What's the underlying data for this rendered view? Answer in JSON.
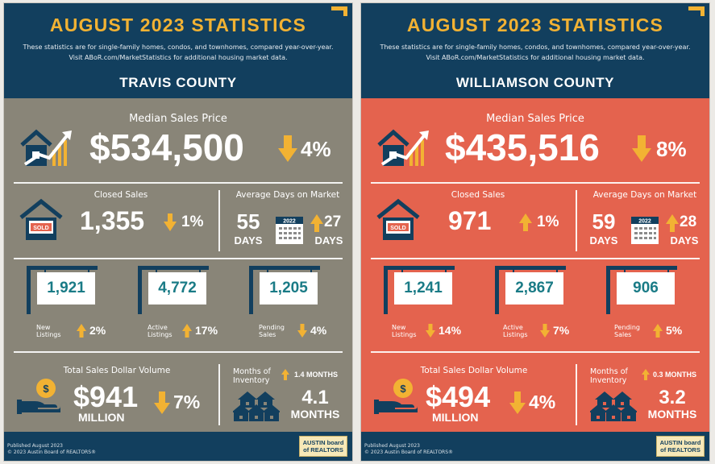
{
  "colors": {
    "navy": "#123f5e",
    "gold": "#f2b233",
    "travis_body": "#898578",
    "williamson_body": "#e4634e",
    "teal": "#1a7b86"
  },
  "panels": [
    {
      "title": "AUGUST 2023 STATISTICS",
      "subtitle_line1": "These statistics are for single-family homes, condos, and townhomes, compared year-over-year.",
      "subtitle_line2": "Visit ABoR.com/MarketStatistics for additional housing market data.",
      "county": "TRAVIS COUNTY",
      "median_label": "Median Sales Price",
      "median_value": "$534,500",
      "median_change": "4%",
      "median_direction": "down",
      "closed_label": "Closed Sales",
      "closed_value": "1,355",
      "closed_change": "1%",
      "closed_direction": "down",
      "dom_label": "Average Days on Market",
      "dom_value": "55",
      "dom_unit": "DAYS",
      "dom_year": "2022",
      "dom_change": "27",
      "dom_change_unit": "DAYS",
      "dom_direction": "up",
      "new_listings_value": "1,921",
      "new_listings_label_1": "New",
      "new_listings_label_2": "Listings",
      "new_listings_change": "2%",
      "new_listings_direction": "up",
      "active_value": "4,772",
      "active_label_1": "Active",
      "active_label_2": "Listings",
      "active_change": "17%",
      "active_direction": "up",
      "pending_value": "1,205",
      "pending_label_1": "Pending",
      "pending_label_2": "Sales",
      "pending_change": "4%",
      "pending_direction": "down",
      "volume_label": "Total Sales Dollar Volume",
      "volume_value": "$941",
      "volume_unit": "MILLION",
      "volume_change": "7%",
      "volume_direction": "down",
      "moi_label_1": "Months of",
      "moi_label_2": "Inventory",
      "moi_change": "1.4 MONTHS",
      "moi_direction": "up",
      "moi_value": "4.1",
      "moi_unit": "MONTHS",
      "published": "Published August 2023",
      "copyright": "© 2023 Austin Board of REALTORS®",
      "logo_line1": "AUSTIN board",
      "logo_line2": "of REALTORS"
    },
    {
      "title": "AUGUST 2023 STATISTICS",
      "subtitle_line1": "These statistics are for single-family homes, condos, and townhomes, compared year-over-year.",
      "subtitle_line2": "Visit ABoR.com/MarketStatistics for additional housing market data.",
      "county": "WILLIAMSON COUNTY",
      "median_label": "Median Sales Price",
      "median_value": "$435,516",
      "median_change": "8%",
      "median_direction": "down",
      "closed_label": "Closed Sales",
      "closed_value": "971",
      "closed_change": "1%",
      "closed_direction": "up",
      "dom_label": "Average Days on Market",
      "dom_value": "59",
      "dom_unit": "DAYS",
      "dom_year": "2022",
      "dom_change": "28",
      "dom_change_unit": "DAYS",
      "dom_direction": "up",
      "new_listings_value": "1,241",
      "new_listings_label_1": "New",
      "new_listings_label_2": "Listings",
      "new_listings_change": "14%",
      "new_listings_direction": "down",
      "active_value": "2,867",
      "active_label_1": "Active",
      "active_label_2": "Listings",
      "active_change": "7%",
      "active_direction": "down",
      "pending_value": "906",
      "pending_label_1": "Pending",
      "pending_label_2": "Sales",
      "pending_change": "5%",
      "pending_direction": "up",
      "volume_label": "Total Sales Dollar Volume",
      "volume_value": "$494",
      "volume_unit": "MILLION",
      "volume_change": "4%",
      "volume_direction": "down",
      "moi_label_1": "Months of",
      "moi_label_2": "Inventory",
      "moi_change": "0.3 MONTHS",
      "moi_direction": "up",
      "moi_value": "3.2",
      "moi_unit": "MONTHS",
      "published": "Published August 2023",
      "copyright": "© 2023 Austin Board of REALTORS®",
      "logo_line1": "AUSTIN board",
      "logo_line2": "of REALTORS"
    }
  ]
}
